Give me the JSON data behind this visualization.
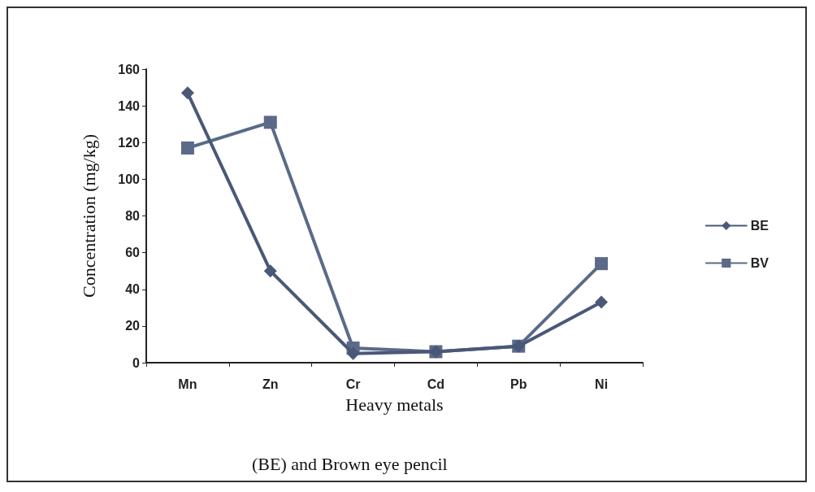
{
  "chart_data": {
    "type": "line",
    "xlabel": "Heavy metals",
    "ylabel": "Concentration (mg/kg)",
    "categories": [
      "Mn",
      "Zn",
      "Cr",
      "Cd",
      "Pb",
      "Ni"
    ],
    "series": [
      {
        "name": "BE",
        "color": "#4a5878",
        "marker": "diamond",
        "values": [
          147,
          50,
          5,
          6,
          9,
          33
        ]
      },
      {
        "name": "BV",
        "color": "#5a6a88",
        "marker": "square",
        "values": [
          117,
          131,
          8,
          6,
          9,
          54
        ]
      }
    ],
    "ylim": [
      0,
      160
    ],
    "yticks": [
      0,
      20,
      40,
      60,
      80,
      100,
      120,
      140,
      160
    ],
    "grid": false,
    "legend": "right",
    "line_style": "solid",
    "annotations": [
      "(BE) and Brown eye pencil"
    ]
  }
}
